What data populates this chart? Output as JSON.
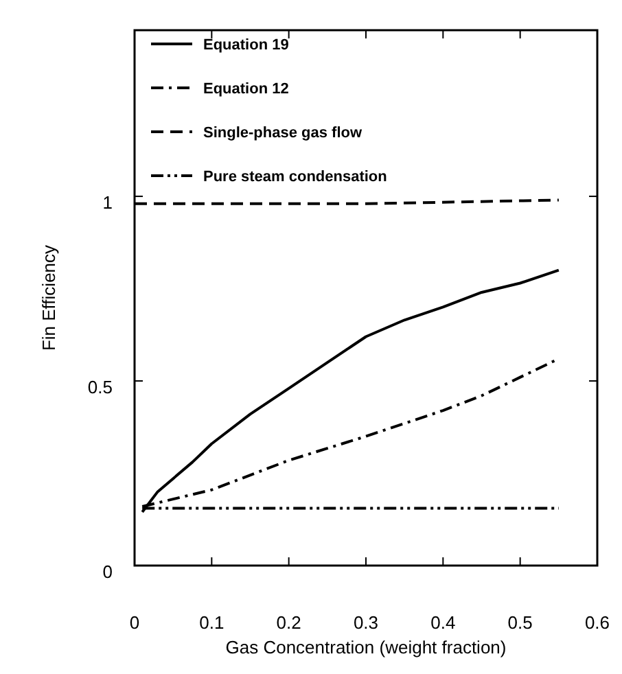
{
  "chart_data": {
    "type": "line",
    "xlabel": "Gas Concentration (weight fraction)",
    "ylabel": "Fin Efficiency",
    "xlim": [
      0,
      0.6
    ],
    "xticks": [
      0,
      0.1,
      0.2,
      0.3,
      0.4,
      0.5,
      0.6
    ],
    "ylim": [
      0,
      1.45
    ],
    "yticks": [
      0,
      0.5,
      1
    ],
    "legend": "top left",
    "grid": false,
    "series": [
      {
        "name": "Equation 19",
        "color": "#000000",
        "line_style": "solid",
        "x": [
          0.01,
          0.03,
          0.075,
          0.1,
          0.15,
          0.2,
          0.25,
          0.3,
          0.35,
          0.4,
          0.45,
          0.5,
          0.55
        ],
        "values": [
          0.145,
          0.2,
          0.28,
          0.33,
          0.41,
          0.48,
          0.55,
          0.62,
          0.665,
          0.7,
          0.74,
          0.765,
          0.8
        ]
      },
      {
        "name": "Equation 12",
        "color": "#000000",
        "line_style": "dashdot",
        "x": [
          0.01,
          0.1,
          0.2,
          0.3,
          0.4,
          0.45,
          0.5,
          0.55
        ],
        "values": [
          0.16,
          0.205,
          0.285,
          0.35,
          0.42,
          0.46,
          0.51,
          0.56
        ]
      },
      {
        "name": "Single-phase gas flow",
        "color": "#000000",
        "line_style": "dashed",
        "x": [
          0,
          0.3,
          0.55
        ],
        "values": [
          0.98,
          0.98,
          0.99
        ]
      },
      {
        "name": "Pure steam condensation",
        "color": "#000000",
        "line_style": "dashdotdot",
        "x": [
          0.01,
          0.3,
          0.55
        ],
        "values": [
          0.155,
          0.155,
          0.155
        ]
      }
    ]
  }
}
